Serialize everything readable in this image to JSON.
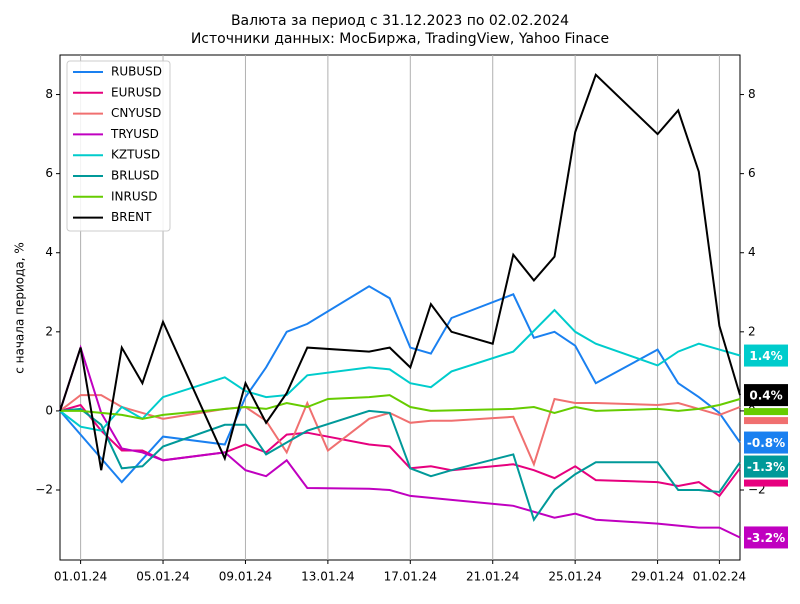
{
  "chart_data": {
    "type": "line",
    "title": "Валюта за период с 31.12.2023 по 02.02.2024",
    "subtitle": "Источники данных: МосБиржа, TradingView, Yahoo Finace",
    "y_label": "с начала периода, %",
    "xlim": [
      "2023-12-31",
      "2024-02-02"
    ],
    "xticks": [
      {
        "value": "2024-01-01",
        "label": "01.01.24"
      },
      {
        "value": "2024-01-05",
        "label": "05.01.24"
      },
      {
        "value": "2024-01-09",
        "label": "09.01.24"
      },
      {
        "value": "2024-01-13",
        "label": "13.01.24"
      },
      {
        "value": "2024-01-17",
        "label": "17.01.24"
      },
      {
        "value": "2024-01-21",
        "label": "21.01.24"
      },
      {
        "value": "2024-01-25",
        "label": "25.01.24"
      },
      {
        "value": "2024-01-29",
        "label": "29.01.24"
      },
      {
        "value": "2024-02-01",
        "label": "01.02.24"
      }
    ],
    "ylim": [
      -3.77,
      9.0
    ],
    "yticks": [
      {
        "value": -2,
        "label": "−2"
      },
      0,
      2,
      4,
      6,
      8
    ],
    "y2lim": [
      -3.77,
      9.0
    ],
    "y2ticks": [
      {
        "value": -2,
        "label": "−2"
      },
      0,
      2,
      4,
      6,
      8
    ],
    "grid": "x",
    "legend": "upper left",
    "series": [
      {
        "name": "RUBUSD",
        "color": "#1a80f0",
        "x": [
          "2023-12-31",
          "2024-01-01",
          "2024-01-03",
          "2024-01-05",
          "2024-01-08",
          "2024-01-09",
          "2024-01-10",
          "2024-01-11",
          "2024-01-12",
          "2024-01-15",
          "2024-01-16",
          "2024-01-17",
          "2024-01-18",
          "2024-01-19",
          "2024-01-22",
          "2024-01-23",
          "2024-01-24",
          "2024-01-25",
          "2024-01-26",
          "2024-01-29",
          "2024-01-30",
          "2024-01-31",
          "2024-02-01",
          "2024-02-02"
        ],
        "values": [
          0,
          -0.6,
          -1.8,
          -0.65,
          -0.85,
          0.35,
          1.1,
          2.0,
          2.2,
          3.15,
          2.85,
          1.6,
          1.45,
          2.35,
          2.95,
          1.85,
          2.0,
          1.65,
          0.7,
          1.55,
          0.7,
          0.35,
          -0.05,
          -0.8
        ],
        "value_label": "-0.8%"
      },
      {
        "name": "EURUSD",
        "color": "#e6007e",
        "x": [
          "2023-12-31",
          "2024-01-01",
          "2024-01-02",
          "2024-01-03",
          "2024-01-04",
          "2024-01-05",
          "2024-01-08",
          "2024-01-09",
          "2024-01-10",
          "2024-01-11",
          "2024-01-12",
          "2024-01-15",
          "2024-01-16",
          "2024-01-17",
          "2024-01-18",
          "2024-01-19",
          "2024-01-22",
          "2024-01-23",
          "2024-01-24",
          "2024-01-25",
          "2024-01-26",
          "2024-01-29",
          "2024-01-30",
          "2024-01-31",
          "2024-02-01",
          "2024-02-02"
        ],
        "values": [
          0,
          0.15,
          -0.5,
          -1.0,
          -1.0,
          -1.25,
          -1.05,
          -0.85,
          -1.05,
          -0.6,
          -0.55,
          -0.85,
          -0.9,
          -1.45,
          -1.4,
          -1.5,
          -1.35,
          -1.5,
          -1.7,
          -1.4,
          -1.75,
          -1.8,
          -1.9,
          -1.8,
          -2.15,
          -1.45
        ]
      },
      {
        "name": "CNYUSD",
        "color": "#f07070",
        "x": [
          "2023-12-31",
          "2024-01-01",
          "2024-01-02",
          "2024-01-03",
          "2024-01-04",
          "2024-01-05",
          "2024-01-08",
          "2024-01-09",
          "2024-01-10",
          "2024-01-11",
          "2024-01-12",
          "2024-01-13",
          "2024-01-15",
          "2024-01-16",
          "2024-01-17",
          "2024-01-18",
          "2024-01-19",
          "2024-01-22",
          "2024-01-23",
          "2024-01-24",
          "2024-01-25",
          "2024-01-26",
          "2024-01-29",
          "2024-01-30",
          "2024-01-31",
          "2024-02-01",
          "2024-02-02"
        ],
        "values": [
          0,
          0.4,
          0.4,
          0.1,
          -0.05,
          -0.2,
          0.05,
          0.1,
          -0.25,
          -1.05,
          0.2,
          -1.0,
          -0.2,
          -0.05,
          -0.3,
          -0.25,
          -0.25,
          -0.15,
          -1.35,
          0.3,
          0.2,
          0.2,
          0.15,
          0.2,
          0.05,
          -0.1,
          0.1
        ]
      },
      {
        "name": "TRYUSD",
        "color": "#c000c0",
        "x": [
          "2023-12-31",
          "2024-01-01",
          "2024-01-02",
          "2024-01-03",
          "2024-01-04",
          "2024-01-05",
          "2024-01-08",
          "2024-01-09",
          "2024-01-10",
          "2024-01-11",
          "2024-01-12",
          "2024-01-15",
          "2024-01-16",
          "2024-01-17",
          "2024-01-19",
          "2024-01-22",
          "2024-01-24",
          "2024-01-25",
          "2024-01-26",
          "2024-01-29",
          "2024-01-30",
          "2024-01-31",
          "2024-02-01",
          "2024-02-02"
        ],
        "values": [
          0,
          1.6,
          -0.05,
          -0.95,
          -1.05,
          -1.25,
          -1.05,
          -1.5,
          -1.65,
          -1.25,
          -1.95,
          -1.97,
          -2.0,
          -2.15,
          -2.25,
          -2.4,
          -2.7,
          -2.6,
          -2.75,
          -2.85,
          -2.9,
          -2.95,
          -2.95,
          -3.2
        ],
        "value_label": "-3.2%"
      },
      {
        "name": "KZTUSD",
        "color": "#00cccc",
        "x": [
          "2023-12-31",
          "2024-01-01",
          "2024-01-02",
          "2024-01-03",
          "2024-01-04",
          "2024-01-05",
          "2024-01-08",
          "2024-01-09",
          "2024-01-10",
          "2024-01-11",
          "2024-01-12",
          "2024-01-15",
          "2024-01-16",
          "2024-01-17",
          "2024-01-18",
          "2024-01-19",
          "2024-01-22",
          "2024-01-24",
          "2024-01-25",
          "2024-01-26",
          "2024-01-29",
          "2024-01-30",
          "2024-01-31",
          "2024-02-01",
          "2024-02-02"
        ],
        "values": [
          0,
          -0.4,
          -0.5,
          0.1,
          -0.2,
          0.35,
          0.85,
          0.5,
          0.35,
          0.4,
          0.9,
          1.1,
          1.05,
          0.7,
          0.6,
          1.0,
          1.5,
          2.55,
          2.0,
          1.7,
          1.15,
          1.5,
          1.7,
          1.55,
          1.4
        ],
        "value_label": "1.4%"
      },
      {
        "name": "BRLUSD",
        "color": "#009999",
        "x": [
          "2023-12-31",
          "2024-01-01",
          "2024-01-02",
          "2024-01-03",
          "2024-01-04",
          "2024-01-05",
          "2024-01-08",
          "2024-01-09",
          "2024-01-10",
          "2024-01-11",
          "2024-01-12",
          "2024-01-15",
          "2024-01-16",
          "2024-01-17",
          "2024-01-18",
          "2024-01-19",
          "2024-01-22",
          "2024-01-23",
          "2024-01-24",
          "2024-01-25",
          "2024-01-26",
          "2024-01-29",
          "2024-01-30",
          "2024-01-31",
          "2024-02-01",
          "2024-02-02"
        ],
        "values": [
          0,
          0.05,
          -0.35,
          -1.45,
          -1.4,
          -0.9,
          -0.35,
          -0.35,
          -1.1,
          -0.8,
          -0.5,
          0,
          -0.05,
          -1.45,
          -1.65,
          -1.5,
          -1.1,
          -2.75,
          -2.0,
          -1.6,
          -1.3,
          -1.3,
          -2.0,
          -2.0,
          -2.05,
          -1.3
        ],
        "value_label": "-1.3%"
      },
      {
        "name": "INRUSD",
        "color": "#66cc00",
        "x": [
          "2023-12-31",
          "2024-01-01",
          "2024-01-02",
          "2024-01-03",
          "2024-01-04",
          "2024-01-05",
          "2024-01-09",
          "2024-01-10",
          "2024-01-11",
          "2024-01-12",
          "2024-01-13",
          "2024-01-15",
          "2024-01-16",
          "2024-01-17",
          "2024-01-18",
          "2024-01-22",
          "2024-01-23",
          "2024-01-24",
          "2024-01-25",
          "2024-01-26",
          "2024-01-29",
          "2024-01-30",
          "2024-01-31",
          "2024-02-01",
          "2024-02-02"
        ],
        "values": [
          0,
          0,
          -0.05,
          -0.1,
          -0.2,
          -0.1,
          0.1,
          0.05,
          0.2,
          0.1,
          0.3,
          0.35,
          0.4,
          0.1,
          0,
          0.05,
          0.1,
          -0.05,
          0.1,
          0.0,
          0.05,
          0.0,
          0.05,
          0.15,
          0.3
        ]
      },
      {
        "name": "BRENT",
        "color": "#000000",
        "x": [
          "2023-12-31",
          "2024-01-01",
          "2024-01-02",
          "2024-01-03",
          "2024-01-04",
          "2024-01-05",
          "2024-01-08",
          "2024-01-09",
          "2024-01-10",
          "2024-01-11",
          "2024-01-12",
          "2024-01-15",
          "2024-01-16",
          "2024-01-17",
          "2024-01-18",
          "2024-01-19",
          "2024-01-21",
          "2024-01-22",
          "2024-01-23",
          "2024-01-24",
          "2024-01-25",
          "2024-01-26",
          "2024-01-29",
          "2024-01-30",
          "2024-01-31",
          "2024-02-01",
          "2024-02-02"
        ],
        "values": [
          0,
          1.6,
          -1.5,
          1.6,
          0.7,
          2.25,
          -1.2,
          0.7,
          -0.3,
          0.45,
          1.6,
          1.5,
          1.6,
          1.1,
          2.7,
          2.0,
          1.7,
          3.95,
          3.3,
          3.9,
          7.05,
          8.5,
          7.0,
          7.6,
          6.05,
          2.15,
          0.4
        ],
        "value_label": "0.4%"
      }
    ]
  }
}
